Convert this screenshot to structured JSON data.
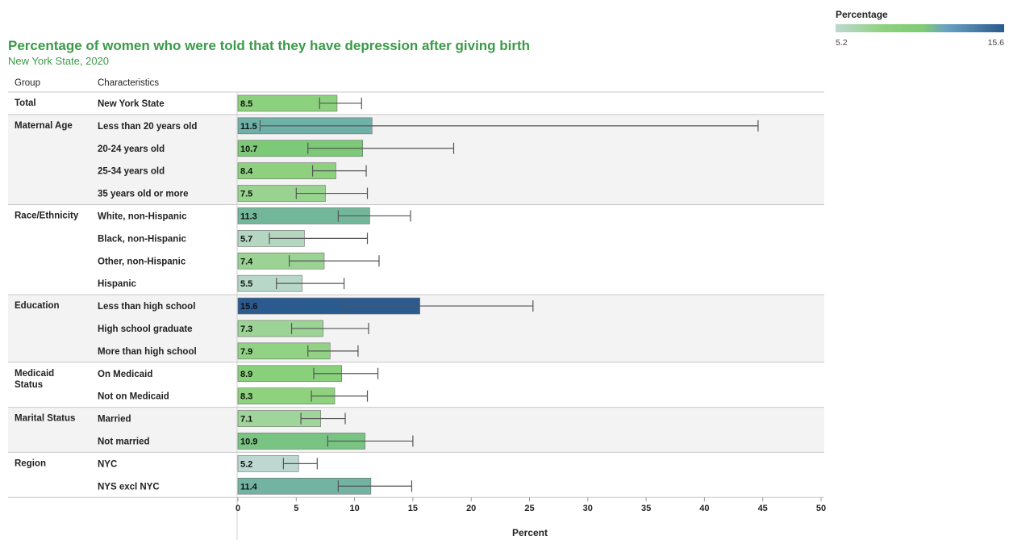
{
  "chart_data": {
    "type": "bar",
    "orientation": "horizontal",
    "title": "Percentage of women who were told that they have depression after giving birth",
    "subtitle": "New York State, 2020",
    "column_headers": {
      "group": "Group",
      "characteristic": "Characteristics"
    },
    "xlabel": "Percent",
    "xlim": [
      0,
      50
    ],
    "xticks": [
      0,
      5,
      10,
      15,
      20,
      25,
      30,
      35,
      40,
      45,
      50
    ],
    "legend": {
      "title": "Percentage",
      "min_label": "5.2",
      "max_label": "15.6",
      "min": 5.2,
      "max": 15.6,
      "placement": "top-right"
    },
    "colors": {
      "low": "#bcd8d0",
      "mid": "#7dcc72",
      "high": "#2b5a8f",
      "title": "#3a9a47"
    },
    "groups": [
      {
        "name": "Total",
        "rows": [
          {
            "label": "New York State",
            "value": 8.5,
            "ci": [
              7.0,
              10.6
            ]
          }
        ]
      },
      {
        "name": "Maternal Age",
        "rows": [
          {
            "label": "Less than 20 years old",
            "value": 11.5,
            "ci": [
              1.9,
              44.6
            ]
          },
          {
            "label": "20-24 years old",
            "value": 10.7,
            "ci": [
              6.0,
              18.5
            ]
          },
          {
            "label": "25-34 years old",
            "value": 8.4,
            "ci": [
              6.4,
              11.0
            ]
          },
          {
            "label": "35 years old or more",
            "value": 7.5,
            "ci": [
              5.0,
              11.1
            ]
          }
        ]
      },
      {
        "name": "Race/Ethnicity",
        "rows": [
          {
            "label": "White, non-Hispanic",
            "value": 11.3,
            "ci": [
              8.6,
              14.8
            ]
          },
          {
            "label": "Black, non-Hispanic",
            "value": 5.7,
            "ci": [
              2.7,
              11.1
            ]
          },
          {
            "label": "Other, non-Hispanic",
            "value": 7.4,
            "ci": [
              4.4,
              12.1
            ]
          },
          {
            "label": "Hispanic",
            "value": 5.5,
            "ci": [
              3.3,
              9.1
            ]
          }
        ]
      },
      {
        "name": "Education",
        "rows": [
          {
            "label": "Less than high school",
            "value": 15.6,
            "ci": [
              9.2,
              25.3
            ]
          },
          {
            "label": "High school graduate",
            "value": 7.3,
            "ci": [
              4.6,
              11.2
            ]
          },
          {
            "label": "More than high school",
            "value": 7.9,
            "ci": [
              6.0,
              10.3
            ]
          }
        ]
      },
      {
        "name": "Medicaid Status",
        "rows": [
          {
            "label": "On Medicaid",
            "value": 8.9,
            "ci": [
              6.5,
              12.0
            ]
          },
          {
            "label": "Not on Medicaid",
            "value": 8.3,
            "ci": [
              6.3,
              11.1
            ]
          }
        ]
      },
      {
        "name": "Marital Status",
        "rows": [
          {
            "label": "Married",
            "value": 7.1,
            "ci": [
              5.4,
              9.2
            ]
          },
          {
            "label": "Not married",
            "value": 10.9,
            "ci": [
              7.7,
              15.0
            ]
          }
        ]
      },
      {
        "name": "Region",
        "rows": [
          {
            "label": "NYC",
            "value": 5.2,
            "ci": [
              3.9,
              6.8
            ]
          },
          {
            "label": "NYS excl NYC",
            "value": 11.4,
            "ci": [
              8.6,
              14.9
            ]
          }
        ]
      }
    ]
  }
}
